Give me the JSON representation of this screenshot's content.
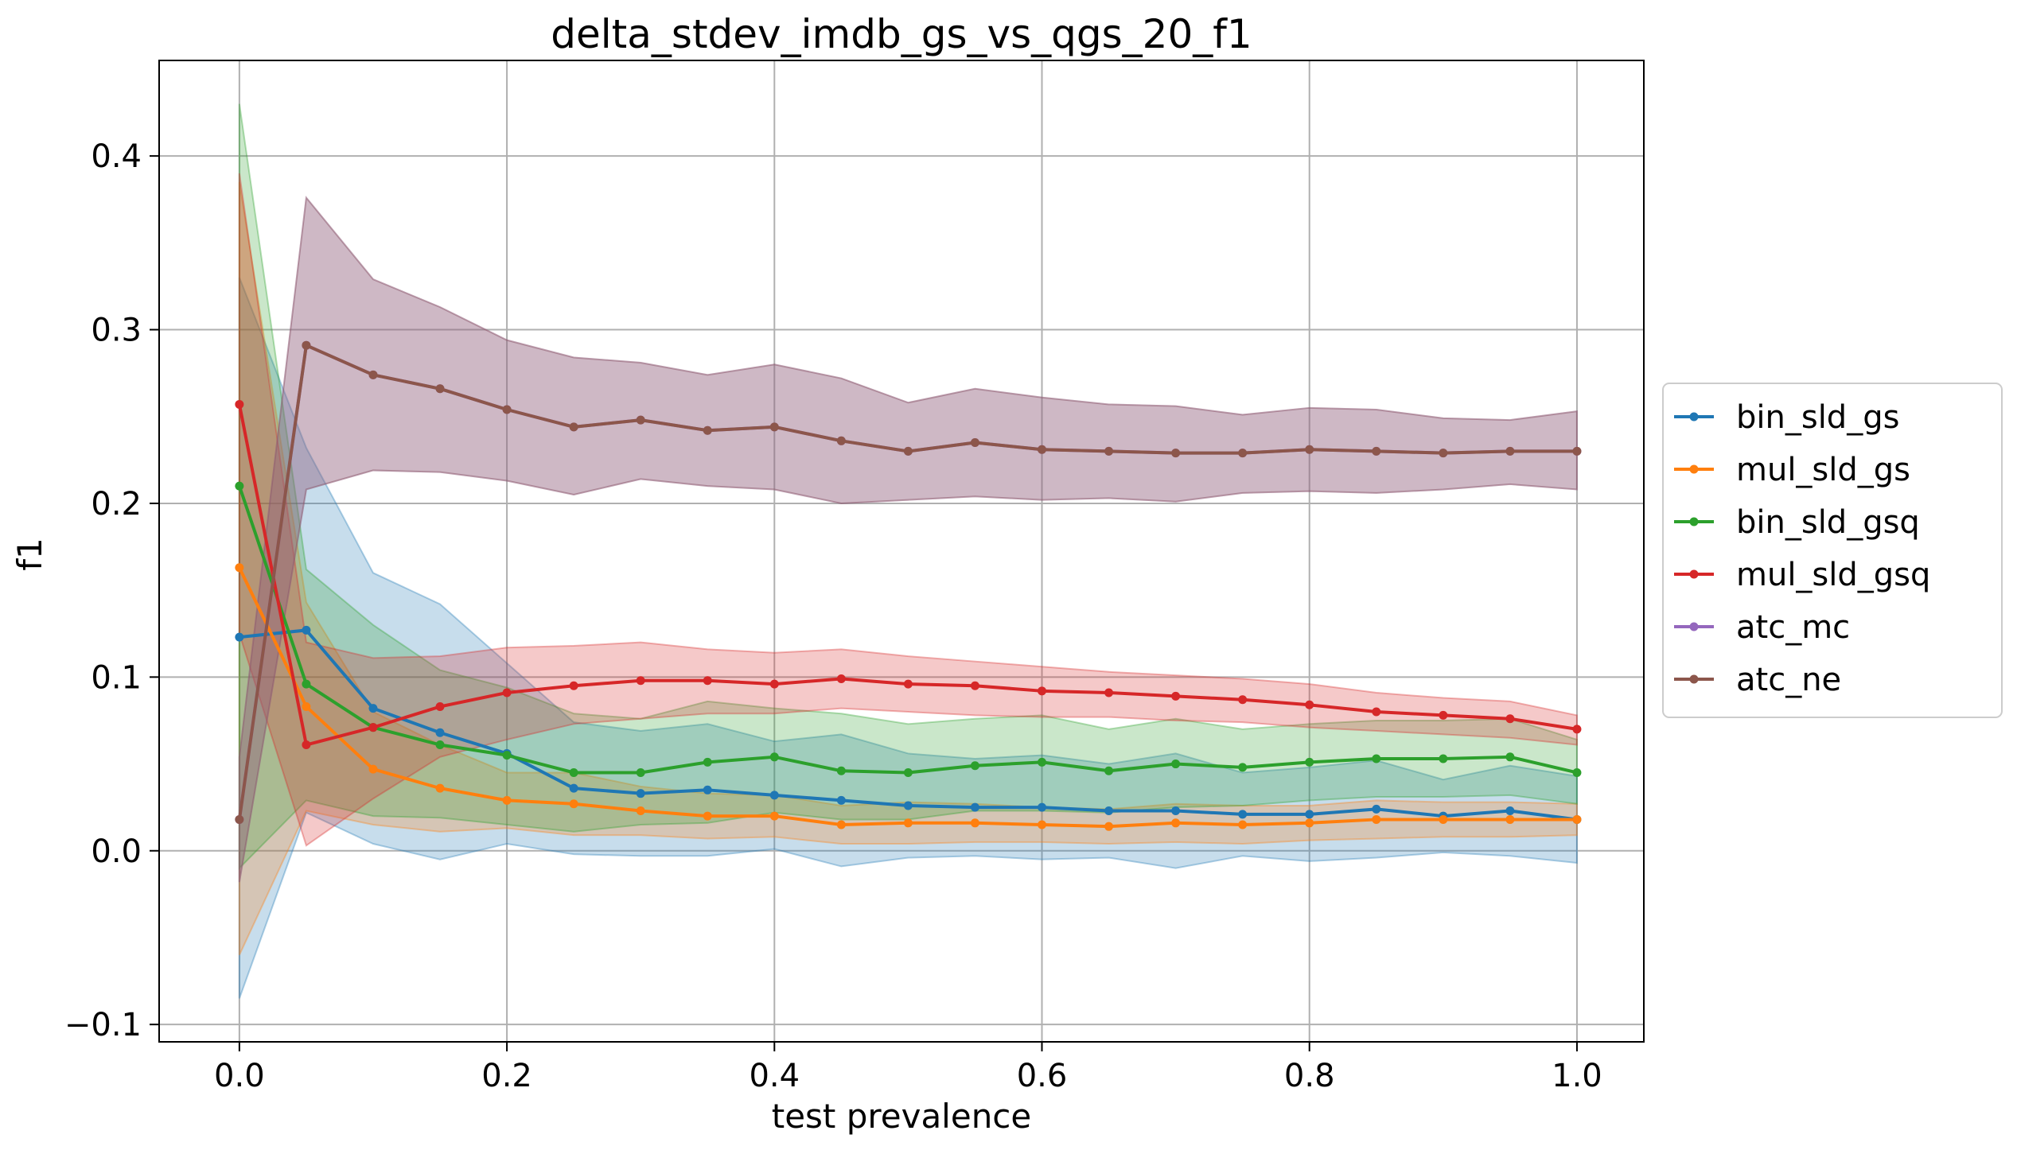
{
  "chart_data": {
    "type": "line",
    "title": "delta_stdev_imdb_gs_vs_qgs_20_f1",
    "xlabel": "test prevalence",
    "ylabel": "f1",
    "xlim": [
      -0.06,
      1.05
    ],
    "ylim": [
      -0.11,
      0.455
    ],
    "xticks": [
      0.0,
      0.2,
      0.4,
      0.6,
      0.8,
      1.0
    ],
    "xtick_labels": [
      "0.0",
      "0.2",
      "0.4",
      "0.6",
      "0.8",
      "1.0"
    ],
    "yticks": [
      -0.1,
      0.0,
      0.1,
      0.2,
      0.3,
      0.4
    ],
    "ytick_labels": [
      "−0.1",
      "0.0",
      "0.1",
      "0.2",
      "0.3",
      "0.4"
    ],
    "grid": true,
    "legend_position": "outside-right",
    "x": [
      0.0,
      0.05,
      0.1,
      0.15,
      0.2,
      0.25,
      0.3,
      0.35,
      0.4,
      0.45,
      0.5,
      0.55,
      0.6,
      0.65,
      0.7,
      0.75,
      0.8,
      0.85,
      0.9,
      0.95,
      1.0
    ],
    "series": [
      {
        "name": "bin_sld_gs",
        "color": "#1f77b4",
        "values": [
          0.123,
          0.127,
          0.082,
          0.068,
          0.056,
          0.036,
          0.033,
          0.035,
          0.032,
          0.029,
          0.026,
          0.025,
          0.025,
          0.023,
          0.023,
          0.021,
          0.021,
          0.024,
          0.02,
          0.023,
          0.018
        ],
        "lower": [
          -0.085,
          0.022,
          0.004,
          -0.005,
          0.004,
          -0.002,
          -0.003,
          -0.003,
          0.001,
          -0.009,
          -0.004,
          -0.003,
          -0.005,
          -0.004,
          -0.01,
          -0.003,
          -0.006,
          -0.004,
          -0.001,
          -0.003,
          -0.007
        ],
        "upper": [
          0.33,
          0.232,
          0.16,
          0.142,
          0.108,
          0.074,
          0.069,
          0.073,
          0.063,
          0.067,
          0.056,
          0.053,
          0.055,
          0.05,
          0.056,
          0.045,
          0.048,
          0.052,
          0.041,
          0.049,
          0.043
        ]
      },
      {
        "name": "mul_sld_gs",
        "color": "#ff7f0e",
        "values": [
          0.163,
          0.083,
          0.047,
          0.036,
          0.029,
          0.027,
          0.023,
          0.02,
          0.02,
          0.015,
          0.016,
          0.016,
          0.015,
          0.014,
          0.016,
          0.015,
          0.016,
          0.018,
          0.018,
          0.018,
          0.018
        ],
        "lower": [
          -0.06,
          0.023,
          0.015,
          0.011,
          0.013,
          0.009,
          0.009,
          0.007,
          0.008,
          0.004,
          0.004,
          0.005,
          0.005,
          0.004,
          0.005,
          0.004,
          0.006,
          0.007,
          0.008,
          0.008,
          0.009
        ],
        "upper": [
          0.385,
          0.143,
          0.08,
          0.061,
          0.045,
          0.045,
          0.037,
          0.033,
          0.032,
          0.026,
          0.028,
          0.027,
          0.025,
          0.024,
          0.027,
          0.026,
          0.026,
          0.029,
          0.028,
          0.028,
          0.027
        ]
      },
      {
        "name": "bin_sld_gsq",
        "color": "#2ca02c",
        "values": [
          0.21,
          0.096,
          0.071,
          0.061,
          0.055,
          0.045,
          0.045,
          0.051,
          0.054,
          0.046,
          0.045,
          0.049,
          0.051,
          0.046,
          0.05,
          0.048,
          0.051,
          0.053,
          0.053,
          0.054,
          0.045
        ],
        "lower": [
          -0.01,
          0.029,
          0.02,
          0.019,
          0.015,
          0.011,
          0.015,
          0.016,
          0.022,
          0.018,
          0.018,
          0.023,
          0.023,
          0.022,
          0.025,
          0.026,
          0.029,
          0.031,
          0.031,
          0.032,
          0.027
        ],
        "upper": [
          0.43,
          0.162,
          0.13,
          0.104,
          0.094,
          0.079,
          0.076,
          0.086,
          0.082,
          0.079,
          0.073,
          0.076,
          0.078,
          0.07,
          0.076,
          0.07,
          0.073,
          0.075,
          0.075,
          0.076,
          0.064
        ]
      },
      {
        "name": "mul_sld_gsq",
        "color": "#d62728",
        "values": [
          0.257,
          0.061,
          0.071,
          0.083,
          0.091,
          0.095,
          0.098,
          0.098,
          0.096,
          0.099,
          0.096,
          0.095,
          0.092,
          0.091,
          0.089,
          0.087,
          0.084,
          0.08,
          0.078,
          0.076,
          0.07
        ],
        "lower": [
          0.125,
          0.003,
          0.03,
          0.054,
          0.064,
          0.073,
          0.076,
          0.079,
          0.079,
          0.082,
          0.08,
          0.078,
          0.077,
          0.077,
          0.075,
          0.074,
          0.071,
          0.069,
          0.067,
          0.065,
          0.061
        ],
        "upper": [
          0.39,
          0.12,
          0.111,
          0.112,
          0.117,
          0.118,
          0.12,
          0.116,
          0.114,
          0.116,
          0.112,
          0.109,
          0.106,
          0.103,
          0.101,
          0.099,
          0.096,
          0.091,
          0.088,
          0.086,
          0.078
        ]
      },
      {
        "name": "atc_mc",
        "color": "#9467bd",
        "values": [
          0.018,
          0.291,
          0.274,
          0.266,
          0.254,
          0.244,
          0.248,
          0.242,
          0.244,
          0.236,
          0.23,
          0.235,
          0.231,
          0.23,
          0.229,
          0.229,
          0.231,
          0.23,
          0.229,
          0.23,
          0.23
        ],
        "lower": [
          -0.018,
          0.208,
          0.219,
          0.218,
          0.213,
          0.205,
          0.214,
          0.21,
          0.208,
          0.2,
          0.202,
          0.204,
          0.202,
          0.203,
          0.201,
          0.206,
          0.207,
          0.206,
          0.208,
          0.211,
          0.208
        ],
        "upper": [
          0.054,
          0.376,
          0.329,
          0.313,
          0.294,
          0.284,
          0.281,
          0.274,
          0.28,
          0.272,
          0.258,
          0.266,
          0.261,
          0.257,
          0.256,
          0.251,
          0.255,
          0.254,
          0.249,
          0.248,
          0.253
        ]
      },
      {
        "name": "atc_ne",
        "color": "#8c564b",
        "values": [
          0.018,
          0.291,
          0.274,
          0.266,
          0.254,
          0.244,
          0.248,
          0.242,
          0.244,
          0.236,
          0.23,
          0.235,
          0.231,
          0.23,
          0.229,
          0.229,
          0.231,
          0.23,
          0.229,
          0.23,
          0.23
        ],
        "lower": [
          -0.018,
          0.208,
          0.219,
          0.218,
          0.213,
          0.205,
          0.214,
          0.21,
          0.208,
          0.2,
          0.202,
          0.204,
          0.202,
          0.203,
          0.201,
          0.206,
          0.207,
          0.206,
          0.208,
          0.211,
          0.208
        ],
        "upper": [
          0.054,
          0.376,
          0.329,
          0.313,
          0.294,
          0.284,
          0.281,
          0.274,
          0.28,
          0.272,
          0.258,
          0.266,
          0.261,
          0.257,
          0.256,
          0.251,
          0.255,
          0.254,
          0.249,
          0.248,
          0.253
        ]
      }
    ]
  }
}
